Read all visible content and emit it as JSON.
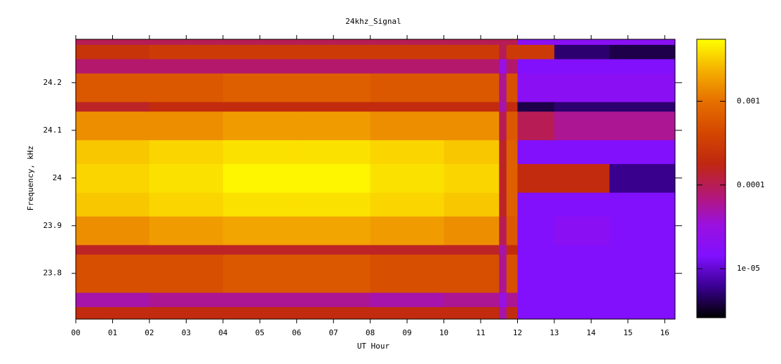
{
  "chart_data": {
    "type": "heatmap",
    "title": "24khz_Signal",
    "x_label": "UT Hour",
    "y_label": "Frequency, kHz",
    "x_edges": [
      0,
      2,
      4,
      6,
      8,
      10,
      11.5,
      11.7,
      12,
      13,
      14.5,
      16.28
    ],
    "y_edges": [
      23.704,
      23.73,
      23.76,
      23.84,
      23.86,
      23.92,
      23.97,
      24.03,
      24.08,
      24.14,
      24.16,
      24.22,
      24.25,
      24.28,
      24.291
    ],
    "z": [
      [
        0.0002,
        0.0002,
        0.0002,
        0.0002,
        0.0002,
        0.0002,
        5e-05,
        0.0002,
        1.5e-05,
        1.5e-05,
        1.5e-05
      ],
      [
        5e-05,
        6e-05,
        6e-05,
        6e-05,
        5e-05,
        6e-05,
        3e-05,
        6e-05,
        1.5e-05,
        1.5e-05,
        1.5e-05
      ],
      [
        0.0005,
        0.0005,
        0.0006,
        0.0006,
        0.0005,
        0.0005,
        6e-05,
        0.0005,
        1.5e-05,
        1.5e-05,
        1.5e-05
      ],
      [
        0.00015,
        0.00015,
        0.00015,
        0.00015,
        0.00015,
        0.00015,
        5e-05,
        0.0002,
        1.5e-05,
        1.5e-05,
        1.5e-05
      ],
      [
        0.0015,
        0.0018,
        0.002,
        0.002,
        0.0018,
        0.0015,
        0.0001,
        0.0006,
        1.5e-05,
        2e-05,
        1.5e-05
      ],
      [
        0.003,
        0.0035,
        0.004,
        0.004,
        0.0035,
        0.003,
        0.00015,
        0.0007,
        1.5e-05,
        1.5e-05,
        1.5e-05
      ],
      [
        0.0035,
        0.004,
        0.005,
        0.005,
        0.004,
        0.0035,
        0.00015,
        0.0007,
        0.0002,
        0.0002,
        6e-06
      ],
      [
        0.003,
        0.0035,
        0.004,
        0.004,
        0.0035,
        0.003,
        0.00015,
        0.0007,
        1.5e-05,
        1.5e-05,
        1.5e-05
      ],
      [
        0.0015,
        0.0015,
        0.0018,
        0.0018,
        0.0015,
        0.0015,
        0.0001,
        0.0006,
        0.0001,
        6e-05,
        6e-05
      ],
      [
        0.00015,
        0.0002,
        0.0002,
        0.0002,
        0.0002,
        0.0002,
        5e-05,
        0.0002,
        4e-06,
        5e-06,
        5e-06
      ],
      [
        0.0006,
        0.0006,
        0.0007,
        0.0007,
        0.0006,
        0.0006,
        6e-05,
        0.0005,
        2e-05,
        2e-05,
        2e-05
      ],
      [
        8e-05,
        8e-05,
        8e-05,
        8e-05,
        8e-05,
        8e-05,
        3e-05,
        8e-05,
        1.5e-05,
        1.5e-05,
        1.5e-05
      ],
      [
        0.00025,
        0.0003,
        0.0003,
        0.0003,
        0.0003,
        0.0003,
        0.0001,
        0.0003,
        0.0003,
        5e-06,
        4e-06
      ],
      [
        0.0001,
        0.0001,
        0.0001,
        0.0001,
        0.0001,
        0.0001,
        0.0001,
        0.0001,
        2e-05,
        2e-05,
        2e-05
      ]
    ],
    "xlim": [
      0,
      16.28
    ],
    "ylim": [
      23.704,
      24.291
    ],
    "xticks": [
      {
        "value": 0,
        "label": "00"
      },
      {
        "value": 1,
        "label": "01"
      },
      {
        "value": 2,
        "label": "02"
      },
      {
        "value": 3,
        "label": "03"
      },
      {
        "value": 4,
        "label": "04"
      },
      {
        "value": 5,
        "label": "05"
      },
      {
        "value": 6,
        "label": "06"
      },
      {
        "value": 7,
        "label": "07"
      },
      {
        "value": 8,
        "label": "08"
      },
      {
        "value": 9,
        "label": "09"
      },
      {
        "value": 10,
        "label": "10"
      },
      {
        "value": 11,
        "label": "11"
      },
      {
        "value": 12,
        "label": "12"
      },
      {
        "value": 13,
        "label": "13"
      },
      {
        "value": 14,
        "label": "14"
      },
      {
        "value": 15,
        "label": "15"
      },
      {
        "value": 16,
        "label": "16"
      }
    ],
    "yticks": [
      23.8,
      23.9,
      24,
      24.1,
      24.2
    ],
    "zlim": [
      2.6e-06,
      0.0055
    ],
    "zlog": true,
    "zticks": [
      {
        "value": 1e-05,
        "label": "1e-05"
      },
      0.0001,
      0.001
    ],
    "colorscale": [
      "#000000",
      "#3a0090",
      "#8010ff",
      "#9a10e0",
      "#b41870",
      "#c02810",
      "#d44800",
      "#e67000",
      "#f5b000",
      "#ffff00"
    ]
  }
}
